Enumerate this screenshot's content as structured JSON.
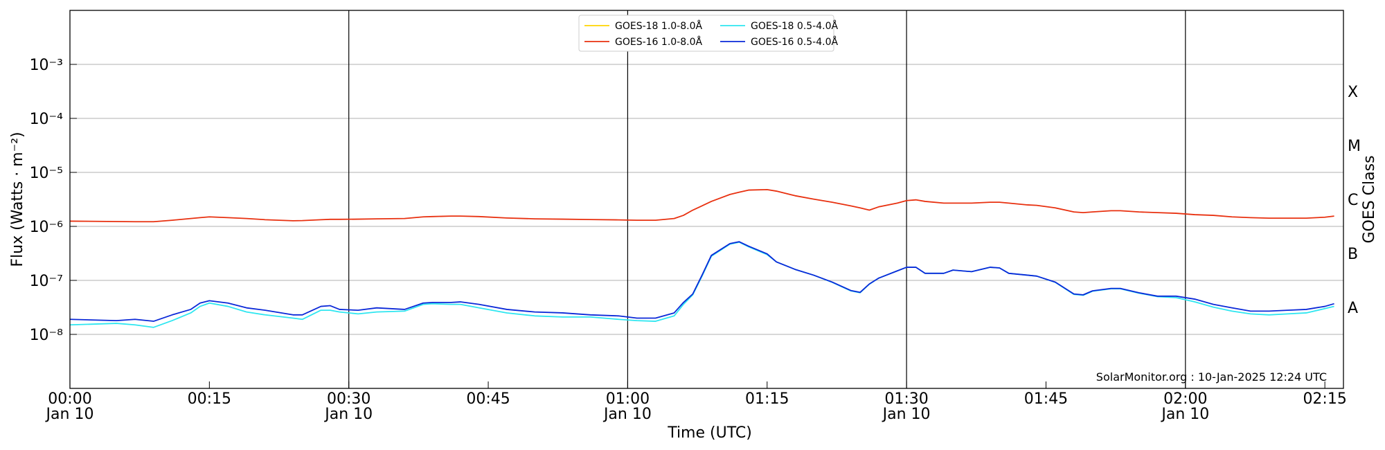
{
  "chart_data": {
    "type": "line",
    "xlabel": "Time (UTC)",
    "ylabel": "Flux (Watts · m⁻²)",
    "y2label": "GOES Class",
    "annotation": "SolarMonitor.org : 10-Jan-2025 12:24 UTC",
    "log_y": true,
    "grid": true,
    "legend": "top-center",
    "xlim": [
      "00:00",
      "02:17"
    ],
    "ylim": [
      1e-09,
      0.01
    ],
    "y2lim": [
      1e-09,
      0.01
    ],
    "xticks": [
      {
        "value": "00:00",
        "label": [
          "00:00",
          "Jan 10"
        ]
      },
      {
        "value": "00:15",
        "label": [
          "00:15"
        ]
      },
      {
        "value": "00:30",
        "label": [
          "00:30",
          "Jan 10"
        ]
      },
      {
        "value": "00:45",
        "label": [
          "00:45"
        ]
      },
      {
        "value": "01:00",
        "label": [
          "01:00",
          "Jan 10"
        ]
      },
      {
        "value": "01:15",
        "label": [
          "01:15"
        ]
      },
      {
        "value": "01:30",
        "label": [
          "01:30",
          "Jan 10"
        ]
      },
      {
        "value": "01:45",
        "label": [
          "01:45"
        ]
      },
      {
        "value": "02:00",
        "label": [
          "02:00",
          "Jan 10"
        ]
      },
      {
        "value": "02:15",
        "label": [
          "02:15"
        ]
      }
    ],
    "vlines": [
      "00:30",
      "01:00",
      "01:30",
      "02:00"
    ],
    "yticks": [
      {
        "value": 1e-08,
        "label": "10⁻⁸"
      },
      {
        "value": 1e-07,
        "label": "10⁻⁷"
      },
      {
        "value": 1e-06,
        "label": "10⁻⁶"
      },
      {
        "value": 1e-05,
        "label": "10⁻⁵"
      },
      {
        "value": 0.0001,
        "label": "10⁻⁴"
      },
      {
        "value": 0.001,
        "label": "10⁻³"
      }
    ],
    "y2ticks": [
      {
        "value": 3.16e-08,
        "label": "A"
      },
      {
        "value": 3.16e-07,
        "label": "B"
      },
      {
        "value": 3.16e-06,
        "label": "C"
      },
      {
        "value": 3.16e-05,
        "label": "M"
      },
      {
        "value": 0.000316,
        "label": "X"
      }
    ],
    "x": [
      "00:00",
      "00:05",
      "00:07",
      "00:09",
      "00:11",
      "00:13",
      "00:14",
      "00:15",
      "00:17",
      "00:19",
      "00:21",
      "00:24",
      "00:25",
      "00:27",
      "00:28",
      "00:29",
      "00:31",
      "00:33",
      "00:36",
      "00:38",
      "00:39",
      "00:41",
      "00:42",
      "00:44",
      "00:47",
      "00:50",
      "00:53",
      "00:56",
      "00:59",
      "01:01",
      "01:03",
      "01:05",
      "01:06",
      "01:07",
      "01:08",
      "01:09",
      "01:11",
      "01:12",
      "01:13",
      "01:15",
      "01:16",
      "01:18",
      "01:20",
      "01:22",
      "01:24",
      "01:25",
      "01:26",
      "01:27",
      "01:29",
      "01:30",
      "01:31",
      "01:32",
      "01:34",
      "01:35",
      "01:37",
      "01:39",
      "01:40",
      "01:41",
      "01:43",
      "01:44",
      "01:46",
      "01:48",
      "01:49",
      "01:50",
      "01:52",
      "01:53",
      "01:55",
      "01:57",
      "01:59",
      "02:01",
      "02:03",
      "02:05",
      "02:07",
      "02:09",
      "02:11",
      "02:13",
      "02:15",
      "02:16"
    ],
    "series": [
      {
        "name": "GOES-18 1.0-8.0Å",
        "color": "#ffd400",
        "values": [
          null,
          null,
          null,
          null,
          null,
          null,
          null,
          null,
          null,
          null,
          null,
          null,
          null,
          null,
          null,
          null,
          null,
          null,
          null,
          null,
          null,
          null,
          null,
          null,
          null,
          null,
          null,
          null,
          null,
          null,
          null,
          null,
          null,
          null,
          null,
          null,
          null,
          null,
          null,
          null,
          null,
          null,
          null,
          null,
          null,
          null,
          null,
          null,
          null,
          null,
          null,
          null,
          null,
          null,
          null,
          null,
          null,
          null,
          null,
          null,
          null,
          null,
          null,
          null,
          null,
          null,
          null,
          null,
          null,
          null,
          null,
          null,
          null,
          null,
          null,
          null,
          null,
          null
        ]
      },
      {
        "name": "GOES-16 1.0-8.0Å",
        "color": "#e8300f",
        "values": [
          1.25e-06,
          1.23e-06,
          1.22e-06,
          1.22e-06,
          1.3e-06,
          1.4e-06,
          1.45e-06,
          1.5e-06,
          1.45e-06,
          1.4e-06,
          1.33e-06,
          1.27e-06,
          1.28e-06,
          1.33e-06,
          1.35e-06,
          1.35e-06,
          1.36e-06,
          1.38e-06,
          1.4e-06,
          1.5e-06,
          1.52e-06,
          1.55e-06,
          1.55e-06,
          1.52e-06,
          1.43e-06,
          1.38e-06,
          1.36e-06,
          1.34e-06,
          1.32e-06,
          1.3e-06,
          1.3e-06,
          1.4e-06,
          1.6e-06,
          2e-06,
          2.4e-06,
          2.9e-06,
          3.9e-06,
          4.3e-06,
          4.7e-06,
          4.8e-06,
          4.5e-06,
          3.7e-06,
          3.2e-06,
          2.8e-06,
          2.4e-06,
          2.2e-06,
          2e-06,
          2.3e-06,
          2.7e-06,
          3e-06,
          3.1e-06,
          2.9e-06,
          2.7e-06,
          2.7e-06,
          2.7e-06,
          2.8e-06,
          2.8e-06,
          2.7e-06,
          2.5e-06,
          2.45e-06,
          2.2e-06,
          1.85e-06,
          1.8e-06,
          1.85e-06,
          1.95e-06,
          1.95e-06,
          1.85e-06,
          1.8e-06,
          1.75e-06,
          1.65e-06,
          1.6e-06,
          1.5e-06,
          1.45e-06,
          1.42e-06,
          1.42e-06,
          1.42e-06,
          1.48e-06,
          1.55e-06
        ]
      },
      {
        "name": "GOES-18 0.5-4.0Å",
        "color": "#2ee6f0",
        "values": [
          1.5e-08,
          1.6e-08,
          1.5e-08,
          1.35e-08,
          1.8e-08,
          2.5e-08,
          3.3e-08,
          3.8e-08,
          3.3e-08,
          2.6e-08,
          2.3e-08,
          2e-08,
          1.9e-08,
          2.8e-08,
          2.8e-08,
          2.6e-08,
          2.4e-08,
          2.6e-08,
          2.7e-08,
          3.6e-08,
          3.7e-08,
          3.6e-08,
          3.6e-08,
          3.1e-08,
          2.5e-08,
          2.2e-08,
          2.1e-08,
          2.1e-08,
          1.9e-08,
          1.8e-08,
          1.75e-08,
          2.2e-08,
          3.6e-08,
          5.4e-08,
          1.2e-07,
          2.8e-07,
          4.7e-07,
          5.1e-07,
          4.2e-07,
          3e-07,
          2.2e-07,
          1.6e-07,
          1.25e-07,
          9.2e-08,
          6.4e-08,
          5.9e-08,
          8.5e-08,
          1.1e-07,
          1.5e-07,
          1.75e-07,
          1.75e-07,
          1.35e-07,
          1.35e-07,
          1.55e-07,
          1.45e-07,
          1.75e-07,
          1.7e-07,
          1.35e-07,
          1.25e-07,
          1.2e-07,
          9.2e-08,
          5.5e-08,
          5.3e-08,
          6.3e-08,
          7e-08,
          7e-08,
          5.8e-08,
          5e-08,
          4.8e-08,
          4e-08,
          3.2e-08,
          2.7e-08,
          2.4e-08,
          2.3e-08,
          2.4e-08,
          2.5e-08,
          3e-08,
          3.3e-08
        ]
      },
      {
        "name": "GOES-16 0.5-4.0Å",
        "color": "#0a28d8",
        "values": [
          1.9e-08,
          1.8e-08,
          1.9e-08,
          1.75e-08,
          2.3e-08,
          2.9e-08,
          3.8e-08,
          4.2e-08,
          3.8e-08,
          3.1e-08,
          2.8e-08,
          2.3e-08,
          2.3e-08,
          3.3e-08,
          3.4e-08,
          2.9e-08,
          2.8e-08,
          3.1e-08,
          2.9e-08,
          3.8e-08,
          3.9e-08,
          3.9e-08,
          4e-08,
          3.6e-08,
          2.9e-08,
          2.6e-08,
          2.5e-08,
          2.3e-08,
          2.2e-08,
          2e-08,
          2e-08,
          2.5e-08,
          3.9e-08,
          5.6e-08,
          1.25e-07,
          2.9e-07,
          4.8e-07,
          5.2e-07,
          4.3e-07,
          3.1e-07,
          2.2e-07,
          1.6e-07,
          1.25e-07,
          9.3e-08,
          6.5e-08,
          6e-08,
          8.6e-08,
          1.1e-07,
          1.5e-07,
          1.75e-07,
          1.75e-07,
          1.35e-07,
          1.35e-07,
          1.55e-07,
          1.45e-07,
          1.75e-07,
          1.7e-07,
          1.35e-07,
          1.25e-07,
          1.2e-07,
          9.3e-08,
          5.6e-08,
          5.4e-08,
          6.4e-08,
          7.1e-08,
          7.1e-08,
          5.9e-08,
          5.1e-08,
          5.1e-08,
          4.5e-08,
          3.6e-08,
          3.1e-08,
          2.7e-08,
          2.7e-08,
          2.8e-08,
          2.9e-08,
          3.3e-08,
          3.7e-08
        ]
      }
    ]
  }
}
